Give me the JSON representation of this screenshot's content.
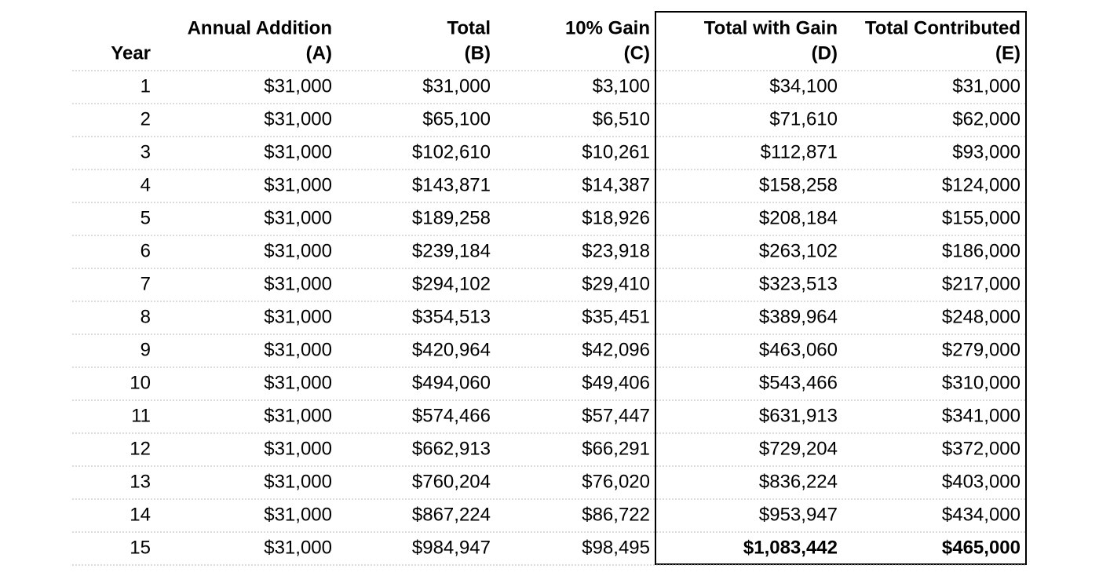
{
  "header": {
    "columns": [
      {
        "lines": [
          "Year"
        ]
      },
      {
        "lines": [
          "Annual Addition",
          "(A)"
        ]
      },
      {
        "lines": [
          "Total",
          "(B)"
        ]
      },
      {
        "lines": [
          "10% Gain",
          "(C)"
        ]
      },
      {
        "lines": [
          "Total with Gain",
          "(D)"
        ]
      },
      {
        "lines": [
          "Total Contributed",
          "(E)"
        ]
      }
    ]
  },
  "table": {
    "rows": [
      [
        "1",
        "$31,000",
        "$31,000",
        "$3,100",
        "$34,100",
        "$31,000"
      ],
      [
        "2",
        "$31,000",
        "$65,100",
        "$6,510",
        "$71,610",
        "$62,000"
      ],
      [
        "3",
        "$31,000",
        "$102,610",
        "$10,261",
        "$112,871",
        "$93,000"
      ],
      [
        "4",
        "$31,000",
        "$143,871",
        "$14,387",
        "$158,258",
        "$124,000"
      ],
      [
        "5",
        "$31,000",
        "$189,258",
        "$18,926",
        "$208,184",
        "$155,000"
      ],
      [
        "6",
        "$31,000",
        "$239,184",
        "$23,918",
        "$263,102",
        "$186,000"
      ],
      [
        "7",
        "$31,000",
        "$294,102",
        "$29,410",
        "$323,513",
        "$217,000"
      ],
      [
        "8",
        "$31,000",
        "$354,513",
        "$35,451",
        "$389,964",
        "$248,000"
      ],
      [
        "9",
        "$31,000",
        "$420,964",
        "$42,096",
        "$463,060",
        "$279,000"
      ],
      [
        "10",
        "$31,000",
        "$494,060",
        "$49,406",
        "$543,466",
        "$310,000"
      ],
      [
        "11",
        "$31,000",
        "$574,466",
        "$57,447",
        "$631,913",
        "$341,000"
      ],
      [
        "12",
        "$31,000",
        "$662,913",
        "$66,291",
        "$729,204",
        "$372,000"
      ],
      [
        "13",
        "$31,000",
        "$760,204",
        "$76,020",
        "$836,224",
        "$403,000"
      ],
      [
        "14",
        "$31,000",
        "$867,224",
        "$86,722",
        "$953,947",
        "$434,000"
      ],
      [
        "15",
        "$31,000",
        "$984,947",
        "$98,495",
        "$1,083,442",
        "$465,000"
      ]
    ]
  }
}
